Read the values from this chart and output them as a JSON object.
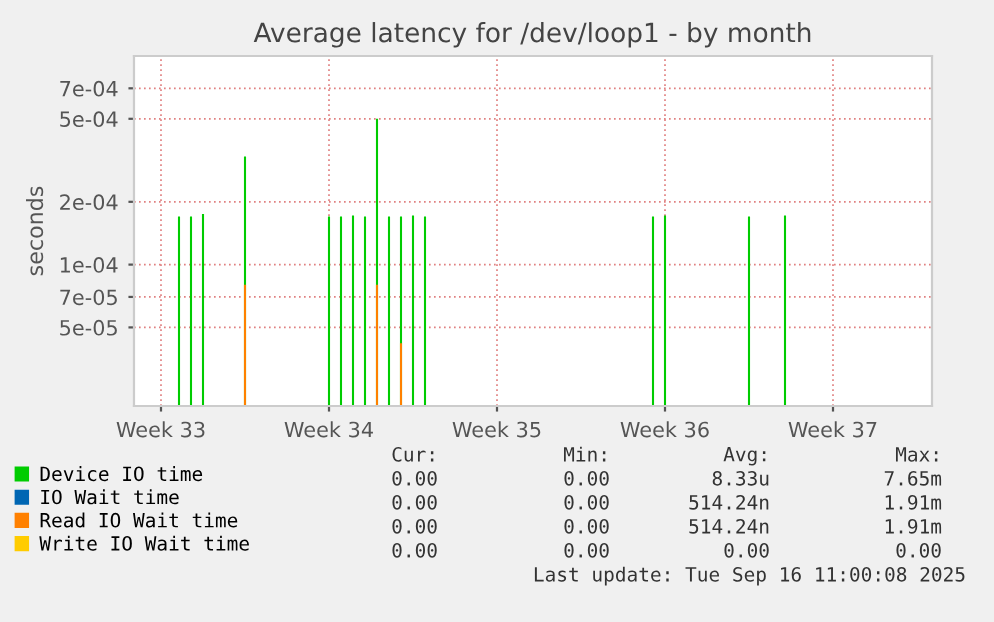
{
  "chart_data": {
    "type": "bar",
    "title": "Average latency for /dev/loop1 - by month",
    "ylabel": "seconds",
    "categories": [
      null,
      null,
      null,
      null,
      "Week 33",
      null,
      null,
      null,
      null,
      null,
      null,
      null,
      null,
      null,
      null,
      null,
      null,
      null,
      null,
      null,
      null,
      null,
      null,
      null,
      null,
      null,
      null,
      null,
      null,
      null,
      null,
      null,
      "Week 34",
      null,
      null,
      null,
      null,
      null,
      null,
      null,
      null,
      null,
      null,
      null,
      null,
      null,
      null,
      null,
      null,
      null,
      null,
      null,
      null,
      null,
      null,
      null,
      null,
      null,
      null,
      null,
      "Week 35",
      null,
      null,
      null,
      null,
      null,
      null,
      null,
      null,
      null,
      null,
      null,
      null,
      null,
      null,
      null,
      null,
      null,
      null,
      null,
      null,
      null,
      null,
      null,
      null,
      null,
      null,
      null,
      "Week 36",
      null,
      null,
      null,
      null,
      null,
      null,
      null,
      null,
      null,
      null,
      null,
      null,
      null,
      null,
      null,
      null,
      null,
      null,
      null,
      null,
      null,
      null,
      null,
      null,
      null,
      null,
      null,
      "Week 37",
      null,
      null,
      null,
      null,
      null,
      null,
      null,
      null,
      null,
      null,
      null,
      null,
      null,
      null,
      null,
      null
    ],
    "series": [
      {
        "name": "Device IO time",
        "color": "#00cc00",
        "values": [
          null,
          null,
          null,
          null,
          null,
          null,
          null,
          0.00017,
          null,
          0.00017,
          null,
          0.000175,
          null,
          null,
          null,
          null,
          null,
          null,
          0.00033,
          null,
          null,
          null,
          null,
          null,
          null,
          null,
          null,
          null,
          null,
          null,
          null,
          null,
          0.00017,
          null,
          0.00017,
          null,
          0.000172,
          null,
          0.00017,
          null,
          0.0005,
          null,
          0.00017,
          null,
          0.00017,
          null,
          0.000172,
          null,
          0.00017,
          null,
          null,
          null,
          null,
          null,
          null,
          null,
          null,
          null,
          null,
          null,
          null,
          null,
          null,
          null,
          null,
          null,
          null,
          null,
          null,
          null,
          null,
          null,
          null,
          null,
          null,
          null,
          null,
          null,
          null,
          null,
          null,
          null,
          null,
          null,
          null,
          null,
          0.00017,
          null,
          0.000172,
          null,
          null,
          null,
          null,
          null,
          null,
          null,
          null,
          null,
          null,
          null,
          null,
          null,
          0.00017,
          null,
          null,
          null,
          null,
          null,
          0.000172,
          null,
          null,
          null,
          null,
          null,
          null,
          null,
          null,
          null,
          null,
          null,
          null,
          null,
          null,
          null,
          null,
          null,
          null,
          null,
          null,
          null,
          null,
          null,
          null
        ]
      },
      {
        "name": "IO Wait time",
        "color": "#0066b3",
        "values": [
          null,
          null,
          null,
          null,
          null,
          null,
          null,
          null,
          null,
          null,
          null,
          null,
          null,
          null,
          null,
          null,
          null,
          null,
          null,
          null,
          null,
          null,
          null,
          null,
          null,
          null,
          null,
          null,
          null,
          null,
          null,
          null,
          null,
          null,
          null,
          null,
          null,
          null,
          null,
          null,
          null,
          null,
          null,
          null,
          null,
          null,
          null,
          null,
          null,
          null,
          null,
          null,
          null,
          null,
          null,
          null,
          null,
          null,
          null,
          null,
          null,
          null,
          null,
          null,
          null,
          null,
          null,
          null,
          null,
          null,
          null,
          null,
          null,
          null,
          null,
          null,
          null,
          null,
          null,
          null,
          null,
          null,
          null,
          null,
          null,
          null,
          null,
          null,
          null,
          null,
          null,
          null,
          null,
          null,
          null,
          null,
          null,
          null,
          null,
          null,
          null,
          null,
          null,
          null,
          null,
          null,
          null,
          null,
          null,
          null,
          null,
          null,
          null,
          null,
          null,
          null,
          null,
          null,
          null,
          null,
          null,
          null,
          null,
          null,
          null,
          null,
          null,
          null,
          null,
          null,
          null,
          null,
          null
        ]
      },
      {
        "name": "Read IO Wait time",
        "color": "#ff8000",
        "values": [
          null,
          null,
          null,
          null,
          null,
          null,
          null,
          null,
          null,
          null,
          null,
          null,
          null,
          null,
          null,
          null,
          null,
          null,
          8e-05,
          null,
          null,
          null,
          null,
          null,
          null,
          null,
          null,
          null,
          null,
          null,
          null,
          null,
          null,
          null,
          null,
          null,
          null,
          null,
          null,
          null,
          8e-05,
          null,
          null,
          null,
          4.2e-05,
          null,
          null,
          null,
          null,
          null,
          null,
          null,
          null,
          null,
          null,
          null,
          null,
          null,
          null,
          null,
          null,
          null,
          null,
          null,
          null,
          null,
          null,
          null,
          null,
          null,
          null,
          null,
          null,
          null,
          null,
          null,
          null,
          null,
          null,
          null,
          null,
          null,
          null,
          null,
          null,
          null,
          null,
          null,
          null,
          null,
          null,
          null,
          null,
          null,
          null,
          null,
          null,
          null,
          null,
          null,
          null,
          null,
          null,
          null,
          null,
          null,
          null,
          null,
          null,
          null,
          null,
          null,
          null,
          null,
          null,
          null,
          null,
          null,
          null,
          null,
          null,
          null,
          null,
          null,
          null,
          null,
          null,
          null,
          null,
          null,
          null,
          null,
          null
        ]
      },
      {
        "name": "Write IO Wait time",
        "color": "#ffcc00",
        "values": [
          null,
          null,
          null,
          null,
          null,
          null,
          null,
          null,
          null,
          null,
          null,
          null,
          null,
          null,
          null,
          null,
          null,
          null,
          null,
          null,
          null,
          null,
          null,
          null,
          null,
          null,
          null,
          null,
          null,
          null,
          null,
          null,
          null,
          null,
          null,
          null,
          null,
          null,
          null,
          null,
          null,
          null,
          null,
          null,
          null,
          null,
          null,
          null,
          null,
          null,
          null,
          null,
          null,
          null,
          null,
          null,
          null,
          null,
          null,
          null,
          null,
          null,
          null,
          null,
          null,
          null,
          null,
          null,
          null,
          null,
          null,
          null,
          null,
          null,
          null,
          null,
          null,
          null,
          null,
          null,
          null,
          null,
          null,
          null,
          null,
          null,
          null,
          null,
          null,
          null,
          null,
          null,
          null,
          null,
          null,
          null,
          null,
          null,
          null,
          null,
          null,
          null,
          null,
          null,
          null,
          null,
          null,
          null,
          null,
          null,
          null,
          null,
          null,
          null,
          null,
          null,
          null,
          null,
          null,
          null,
          null,
          null,
          null,
          null,
          null,
          null,
          null,
          null,
          null,
          null,
          null,
          null,
          null
        ]
      }
    ],
    "log": "y",
    "ylim": [
      2.1e-05,
      0.001
    ],
    "yticks": [
      {
        "value": 5e-05,
        "label": "5e-05"
      },
      {
        "value": 7e-05,
        "label": "7e-05"
      },
      {
        "value": 0.0001,
        "label": "1e-04"
      },
      {
        "value": 0.0002,
        "label": "2e-04"
      },
      {
        "value": 0.0005,
        "label": "5e-04"
      },
      {
        "value": 0.0007,
        "label": "7e-04"
      }
    ],
    "grid": true,
    "legend": "bottom left",
    "annotations": [
      "Cur:",
      "Min:",
      "Avg:",
      "Max:",
      "0.00",
      "0.00",
      "8.33u",
      "7.65m",
      "0.00",
      "0.00",
      "514.24n",
      "1.91m",
      "0.00",
      "0.00",
      "514.24n",
      "1.91m",
      "0.00",
      "0.00",
      "0.00",
      "0.00",
      "Last update: Tue Sep 16 11:00:08 2025"
    ]
  }
}
